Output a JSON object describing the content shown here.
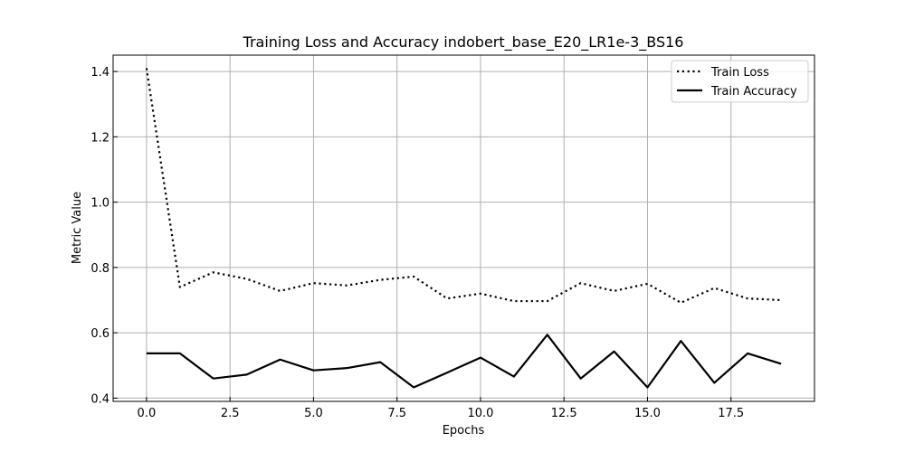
{
  "chart_data": {
    "type": "line",
    "title": "Training Loss and Accuracy indobert_base_E20_LR1e-3_BS16",
    "xlabel": "Epochs",
    "ylabel": "Metric Value",
    "xlim": [
      -1,
      20
    ],
    "ylim": [
      0.39,
      1.45
    ],
    "xticks": [
      0.0,
      2.5,
      5.0,
      7.5,
      10.0,
      12.5,
      15.0,
      17.5
    ],
    "xtick_labels": [
      "0.0",
      "2.5",
      "5.0",
      "7.5",
      "10.0",
      "12.5",
      "15.0",
      "17.5"
    ],
    "yticks": [
      0.4,
      0.6,
      0.8,
      1.0,
      1.2,
      1.4
    ],
    "ytick_labels": [
      "0.4",
      "0.6",
      "0.8",
      "1.0",
      "1.2",
      "1.4"
    ],
    "grid": true,
    "legend_position": "top-right",
    "x": [
      0,
      1,
      2,
      3,
      4,
      5,
      6,
      7,
      8,
      9,
      10,
      11,
      12,
      13,
      14,
      15,
      16,
      17,
      18,
      19
    ],
    "series": [
      {
        "name": "Train Loss",
        "style": "dotted",
        "color": "#000000",
        "values": [
          1.41,
          0.74,
          0.785,
          0.765,
          0.728,
          0.752,
          0.745,
          0.762,
          0.772,
          0.705,
          0.72,
          0.697,
          0.697,
          0.752,
          0.728,
          0.75,
          0.692,
          0.737,
          0.705,
          0.7
        ]
      },
      {
        "name": "Train Accuracy",
        "style": "solid",
        "color": "#000000",
        "values": [
          0.537,
          0.537,
          0.46,
          0.472,
          0.518,
          0.485,
          0.492,
          0.51,
          0.433,
          0.478,
          0.524,
          0.466,
          0.594,
          0.46,
          0.543,
          0.433,
          0.575,
          0.447,
          0.537,
          0.505
        ]
      }
    ]
  }
}
